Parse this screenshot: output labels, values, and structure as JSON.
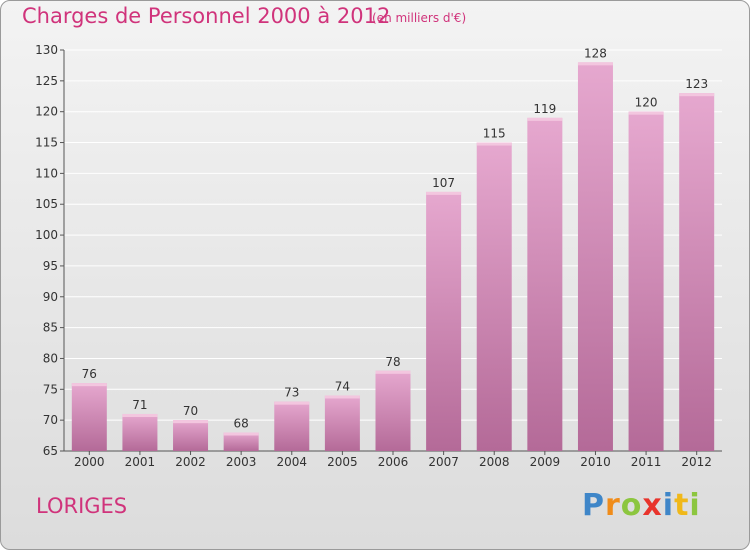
{
  "chart_data": {
    "type": "bar",
    "title": "Charges de Personnel 2000 à 2012",
    "subtitle": "(en milliers d'€)",
    "categories": [
      "2000",
      "2001",
      "2002",
      "2003",
      "2004",
      "2005",
      "2006",
      "2007",
      "2008",
      "2009",
      "2010",
      "2011",
      "2012"
    ],
    "values": [
      76,
      71,
      70,
      68,
      73,
      74,
      78,
      107,
      115,
      119,
      128,
      120,
      123
    ],
    "ylim": [
      65,
      130
    ],
    "yticks": [
      65,
      70,
      75,
      80,
      85,
      90,
      95,
      100,
      105,
      110,
      115,
      120,
      125,
      130
    ],
    "grid": true,
    "bar_color": "#c86b9f",
    "grid_color": "#ffffff"
  },
  "location": "LORIGES",
  "brand": {
    "letters": [
      {
        "ch": "P",
        "color": "#3f86c8"
      },
      {
        "ch": "r",
        "color": "#f08c1a"
      },
      {
        "ch": "o",
        "color": "#8cc63f"
      },
      {
        "ch": "x",
        "color": "#e8342c"
      },
      {
        "ch": "i",
        "color": "#3f86c8"
      },
      {
        "ch": "t",
        "color": "#f0b81a"
      },
      {
        "ch": "i",
        "color": "#8cc63f"
      }
    ]
  },
  "colors": {
    "accent": "#d0337b"
  }
}
